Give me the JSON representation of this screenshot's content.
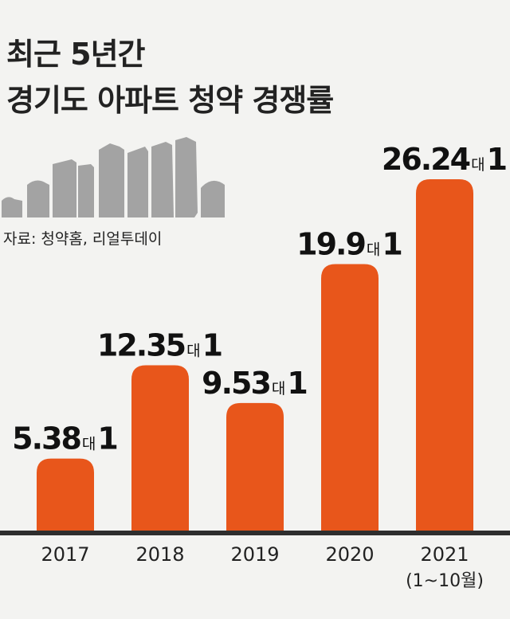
{
  "title_lines": [
    "최근 5년간",
    "경기도 아파트 청약 경쟁률"
  ],
  "source": "자료: 청약홈, 리얼투데이",
  "colors": {
    "bar": "#e8561b",
    "text": "#222222",
    "skyline": "#a3a3a3",
    "background": "#f3f3f1"
  },
  "chart_data": {
    "type": "bar",
    "categories": [
      "2017",
      "2018",
      "2019",
      "2020",
      "2021"
    ],
    "category_sublabels": [
      "",
      "",
      "",
      "",
      "(1~10월)"
    ],
    "values": [
      5.38,
      12.35,
      9.53,
      19.9,
      26.24
    ],
    "value_labels": [
      "5.38",
      "12.35",
      "9.53",
      "19.9",
      "26.24"
    ],
    "unit_mid": "대",
    "unit_end": "1",
    "ylim": [
      0,
      26.24
    ],
    "title": "",
    "xlabel": "",
    "ylabel": ""
  }
}
